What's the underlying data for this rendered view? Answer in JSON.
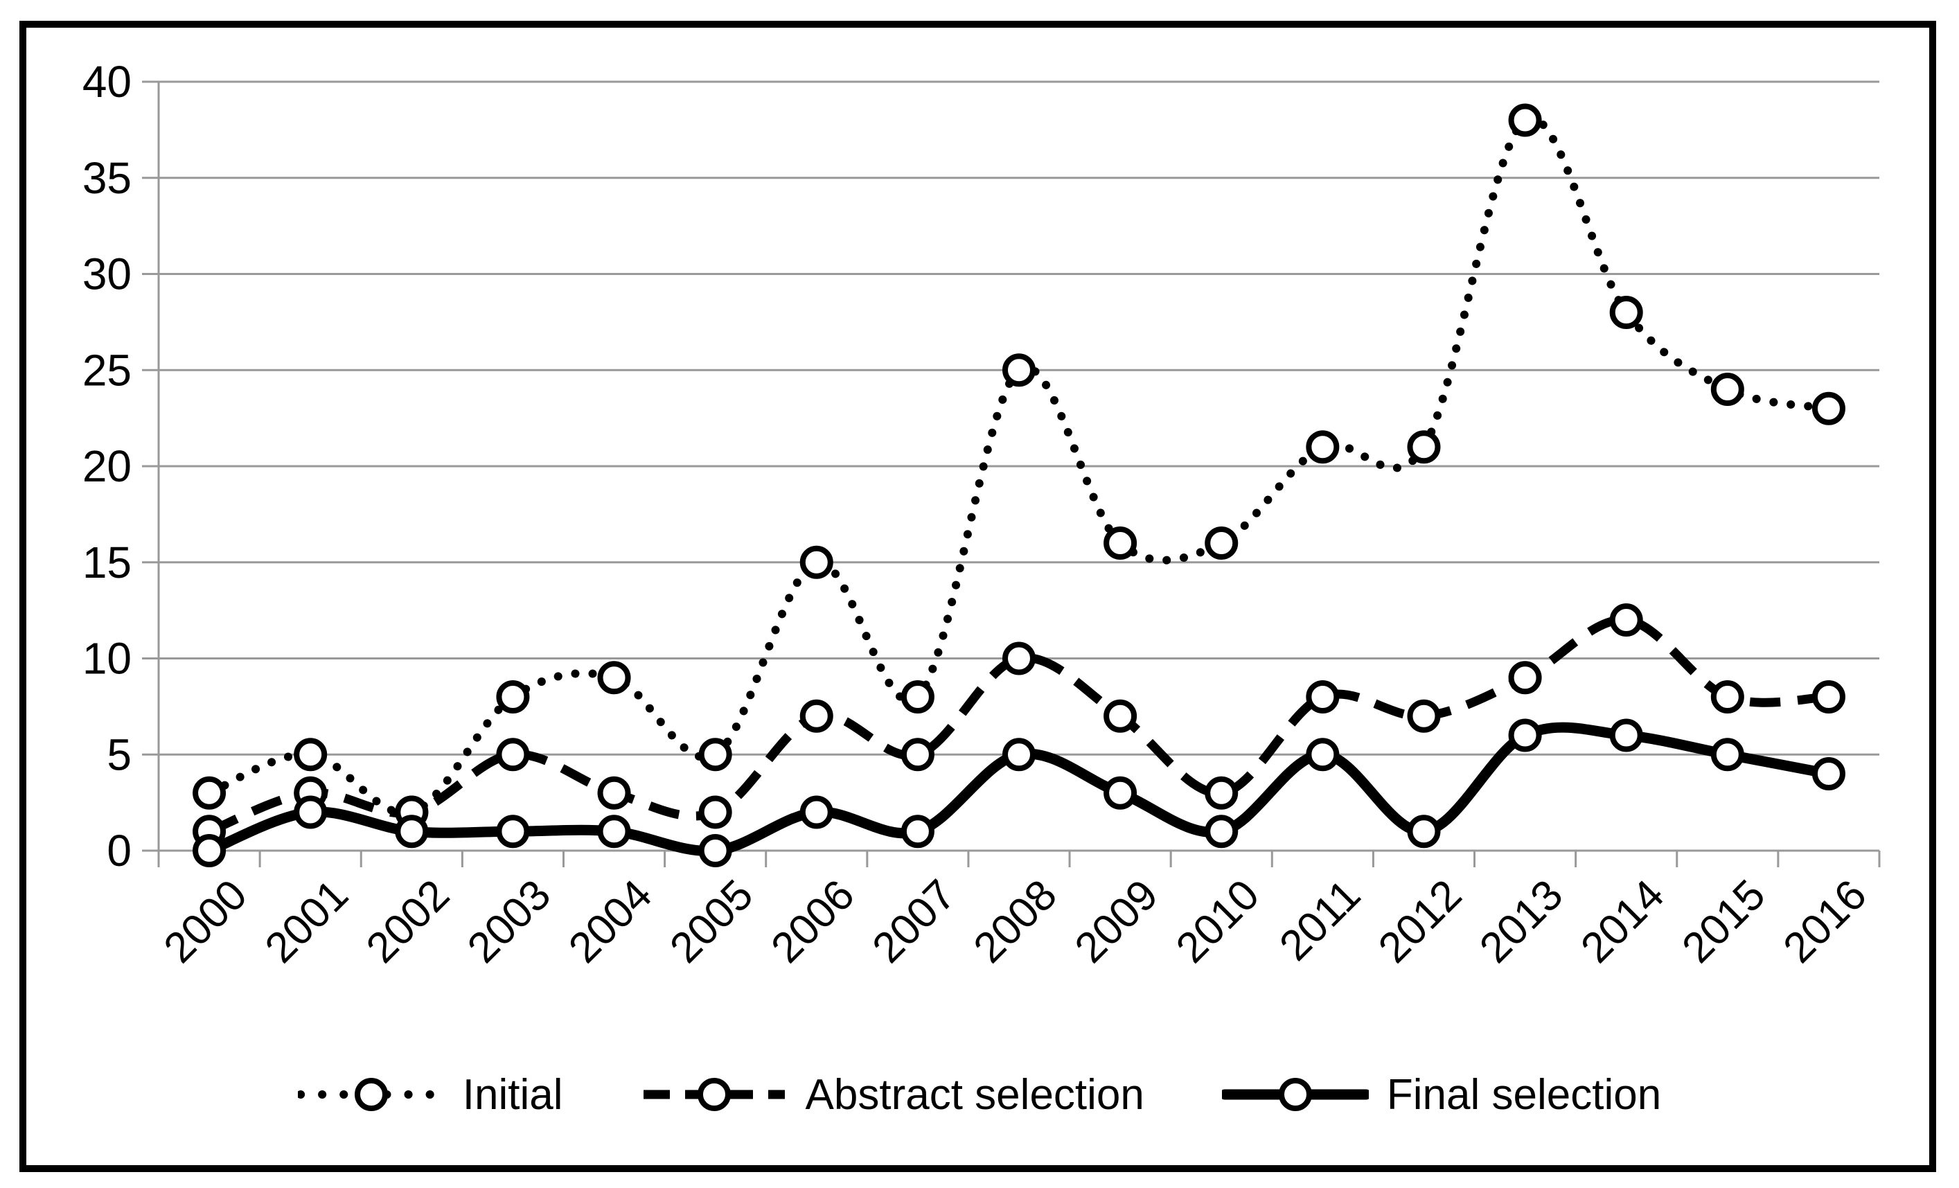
{
  "chart_data": {
    "type": "line",
    "title": "",
    "xlabel": "",
    "ylabel": "",
    "categories": [
      "2000",
      "2001",
      "2002",
      "2003",
      "2004",
      "2005",
      "2006",
      "2007",
      "2008",
      "2009",
      "2010",
      "2011",
      "2012",
      "2013",
      "2014",
      "2015",
      "2016"
    ],
    "series": [
      {
        "name": "Initial",
        "style": "dotted",
        "values": [
          3,
          5,
          2,
          8,
          9,
          5,
          15,
          8,
          25,
          16,
          16,
          21,
          21,
          38,
          28,
          24,
          23
        ]
      },
      {
        "name": "Abstract selection",
        "style": "dashed",
        "values": [
          1,
          3,
          2,
          5,
          3,
          2,
          7,
          5,
          10,
          7,
          3,
          8,
          7,
          9,
          12,
          8,
          8
        ]
      },
      {
        "name": "Final selection",
        "style": "solid",
        "values": [
          0,
          2,
          1,
          1,
          1,
          0,
          2,
          1,
          5,
          3,
          1,
          5,
          1,
          6,
          6,
          5,
          4
        ]
      }
    ],
    "ylim": [
      0,
      40
    ],
    "y_ticks": [
      0,
      5,
      10,
      15,
      20,
      25,
      30,
      35,
      40
    ],
    "grid": true,
    "smoothed": true,
    "marker": "open-circle",
    "legend_position": "bottom",
    "colors": {
      "series": "#000000",
      "grid": "#999999",
      "text": "#000000",
      "frame": "#000000",
      "marker_fill": "#ffffff",
      "background": "#ffffff"
    }
  }
}
